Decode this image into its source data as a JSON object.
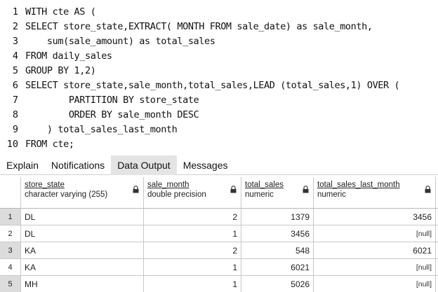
{
  "editor": {
    "lines": [
      {
        "n": "1",
        "text": "WITH cte AS ("
      },
      {
        "n": "2",
        "text": "SELECT store_state,EXTRACT( MONTH FROM sale_date) as sale_month,"
      },
      {
        "n": "3",
        "text": "    sum(sale_amount) as total_sales"
      },
      {
        "n": "4",
        "text": "FROM daily_sales"
      },
      {
        "n": "5",
        "text": "GROUP BY 1,2)"
      },
      {
        "n": "6",
        "text": "SELECT store_state,sale_month,total_sales,LEAD (total_sales,1) OVER ("
      },
      {
        "n": "7",
        "text": "        PARTITION BY store_state"
      },
      {
        "n": "8",
        "text": "        ORDER BY sale_month DESC"
      },
      {
        "n": "9",
        "text": "    ) total_sales_last_month"
      },
      {
        "n": "10",
        "text": "FROM cte;"
      }
    ]
  },
  "tabs": [
    {
      "label": "Explain",
      "active": false
    },
    {
      "label": "Notifications",
      "active": false
    },
    {
      "label": "Data Output",
      "active": true
    },
    {
      "label": "Messages",
      "active": false
    }
  ],
  "grid": {
    "columns": [
      {
        "name": "store_state",
        "type": "character varying (255)",
        "icon": "lock-icon"
      },
      {
        "name": "sale_month",
        "type": "double precision",
        "icon": "lock-icon"
      },
      {
        "name": "total_sales",
        "type": "numeric",
        "icon": "lock-icon"
      },
      {
        "name": "total_sales_last_month",
        "type": "numeric",
        "icon": "lock-icon"
      }
    ],
    "rows": [
      {
        "num": "1",
        "store_state": "DL",
        "sale_month": "2",
        "total_sales": "1379",
        "total_sales_last_month": "3456"
      },
      {
        "num": "2",
        "store_state": "DL",
        "sale_month": "1",
        "total_sales": "3456",
        "total_sales_last_month": "[null]"
      },
      {
        "num": "3",
        "store_state": "KA",
        "sale_month": "2",
        "total_sales": "548",
        "total_sales_last_month": "6021"
      },
      {
        "num": "4",
        "store_state": "KA",
        "sale_month": "1",
        "total_sales": "6021",
        "total_sales_last_month": "[null]"
      },
      {
        "num": "5",
        "store_state": "MH",
        "sale_month": "1",
        "total_sales": "5026",
        "total_sales_last_month": "[null]"
      }
    ]
  }
}
